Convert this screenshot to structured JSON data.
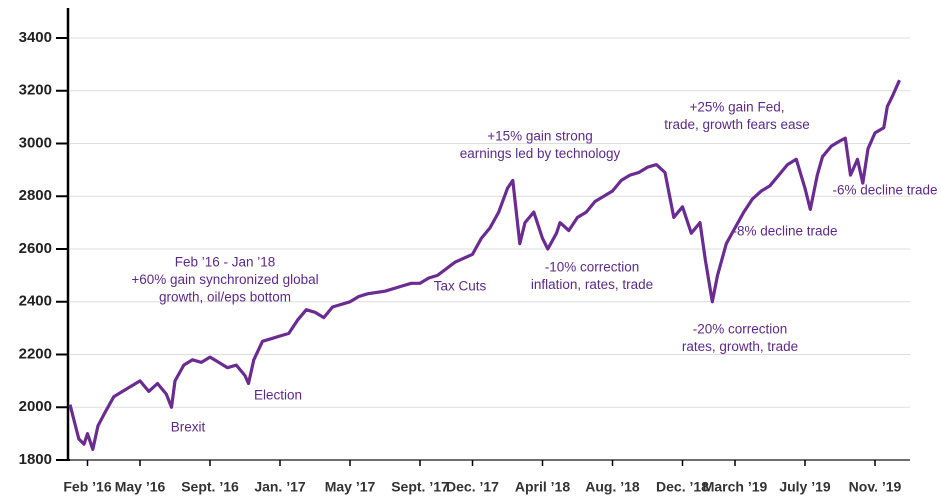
{
  "chart_data": {
    "type": "line",
    "color": "#6a2c91",
    "x": [
      0,
      0.5,
      0.8,
      1.0,
      1.3,
      1.6,
      2,
      2.5,
      3,
      3.5,
      4,
      4.5,
      5,
      5.5,
      5.8,
      6,
      6.5,
      7,
      7.5,
      8,
      8.5,
      9,
      9.5,
      10,
      10.2,
      10.5,
      11,
      11.5,
      12,
      12.5,
      13,
      13.5,
      14,
      14.5,
      15,
      15.5,
      16,
      16.5,
      17,
      18,
      19,
      19.5,
      20,
      20.5,
      21,
      22,
      23,
      23.5,
      24,
      24.5,
      25,
      25.3,
      25.7,
      26,
      26.5,
      27,
      27.3,
      27.8,
      28,
      28.5,
      29,
      29.5,
      30,
      30.5,
      31,
      31.5,
      32,
      32.5,
      33,
      33.5,
      34,
      34.5,
      35,
      35.5,
      36,
      36.3,
      36.7,
      37,
      37.5,
      38,
      38.5,
      39,
      39.5,
      40,
      40.5,
      41,
      41.5,
      42,
      42.3,
      42.7,
      43,
      43.5,
      44,
      44.3,
      44.6,
      45,
      45.3,
      45.6,
      46,
      46.5,
      46.7,
      47,
      47.4
    ],
    "values": [
      2010,
      1880,
      1860,
      1900,
      1840,
      1930,
      1980,
      2040,
      2060,
      2080,
      2100,
      2060,
      2090,
      2050,
      2000,
      2100,
      2160,
      2180,
      2170,
      2190,
      2170,
      2150,
      2160,
      2120,
      2090,
      2180,
      2250,
      2260,
      2270,
      2280,
      2330,
      2370,
      2360,
      2340,
      2380,
      2390,
      2400,
      2420,
      2430,
      2440,
      2460,
      2470,
      2470,
      2490,
      2500,
      2550,
      2580,
      2640,
      2680,
      2740,
      2830,
      2860,
      2620,
      2700,
      2740,
      2640,
      2600,
      2660,
      2700,
      2670,
      2720,
      2740,
      2780,
      2800,
      2820,
      2860,
      2880,
      2890,
      2910,
      2920,
      2890,
      2720,
      2760,
      2660,
      2700,
      2560,
      2400,
      2500,
      2620,
      2680,
      2740,
      2790,
      2820,
      2840,
      2880,
      2920,
      2940,
      2830,
      2750,
      2880,
      2950,
      2990,
      3010,
      3020,
      2880,
      2940,
      2850,
      2980,
      3040,
      3060,
      3140,
      3180,
      3240
    ],
    "xlim": [
      0,
      48
    ],
    "xticks": [
      {
        "value": 1,
        "label": "Feb ’16"
      },
      {
        "value": 4,
        "label": "May ’16"
      },
      {
        "value": 8,
        "label": "Sept. ’16"
      },
      {
        "value": 12,
        "label": "Jan. ’17"
      },
      {
        "value": 16,
        "label": "May ’17"
      },
      {
        "value": 20,
        "label": "Sept. ’17"
      },
      {
        "value": 23,
        "label": "Dec. ’17"
      },
      {
        "value": 27,
        "label": "April ’18"
      },
      {
        "value": 31,
        "label": "Aug. ’18"
      },
      {
        "value": 35,
        "label": "Dec. ’18"
      },
      {
        "value": 38,
        "label": "March ’19"
      },
      {
        "value": 42,
        "label": "July ’19"
      },
      {
        "value": 46,
        "label": "Nov. ’19"
      }
    ],
    "ylim": [
      1800,
      3400
    ],
    "yticks": [
      1800,
      2000,
      2200,
      2400,
      2600,
      2800,
      3000,
      3200,
      3400
    ],
    "grid": true,
    "annotations": [
      {
        "lines": [
          "Feb ’16 - Jan ’18",
          "+60% gain synchronized global",
          "growth, oil/eps bottom"
        ]
      },
      {
        "lines": [
          "Brexit"
        ]
      },
      {
        "lines": [
          "Election"
        ]
      },
      {
        "lines": [
          "Tax Cuts"
        ]
      },
      {
        "lines": [
          "+15% gain strong",
          "earnings led by technology"
        ]
      },
      {
        "lines": [
          "-10% correction",
          "inflation, rates, trade"
        ]
      },
      {
        "lines": [
          "+25% gain Fed,",
          "trade, growth fears ease"
        ]
      },
      {
        "lines": [
          "-8% decline trade"
        ]
      },
      {
        "lines": [
          "-6% decline trade"
        ]
      },
      {
        "lines": [
          "-20% correction",
          "rates, growth, trade"
        ]
      }
    ]
  }
}
